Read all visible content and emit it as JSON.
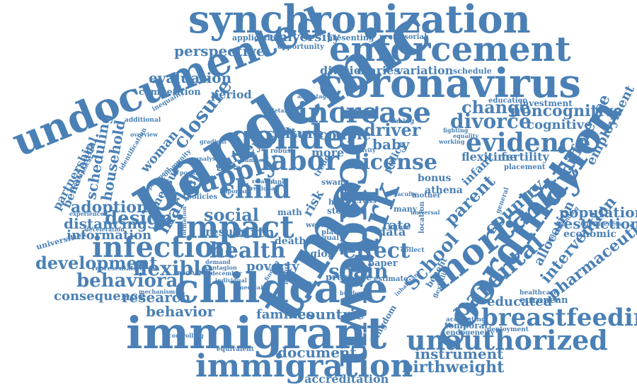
{
  "title": "",
  "color": "#4a80b5",
  "words": [
    {
      "id": "synchronization",
      "text": "synchronization",
      "weight": 0.8
    },
    {
      "id": "enforcement",
      "text": "enforcement",
      "weight": 0.8
    },
    {
      "id": "coronavirus",
      "text": "coronavirus",
      "weight": 0.8
    },
    {
      "id": "undocumented",
      "text": "undocumented",
      "weight": 0.9
    },
    {
      "id": "pandemic",
      "text": "pandemic",
      "weight": 1.0
    },
    {
      "id": "gender",
      "text": "gender",
      "weight": 0.75
    },
    {
      "id": "increase",
      "text": "increase",
      "weight": 0.6
    },
    {
      "id": "labor",
      "text": "labor",
      "weight": 0.6
    },
    {
      "id": "supply",
      "text": "supply",
      "weight": 0.55
    },
    {
      "id": "child",
      "text": "child",
      "weight": 0.55
    },
    {
      "id": "impact",
      "text": "impact",
      "weight": 0.7
    },
    {
      "id": "infection",
      "text": "infection",
      "weight": 0.65
    },
    {
      "id": "childcare",
      "text": "childcare",
      "weight": 0.9
    },
    {
      "id": "immigrant",
      "text": "immigrant",
      "weight": 0.9
    },
    {
      "id": "immigration",
      "text": "immigration",
      "weight": 0.75
    },
    {
      "id": "time",
      "text": "time",
      "weight": 1.0
    },
    {
      "id": "lockdown",
      "text": "lockdown",
      "weight": 0.95
    },
    {
      "id": "work",
      "text": "work",
      "weight": 0.75
    },
    {
      "id": "coordination",
      "text": "coordination",
      "weight": 0.9
    },
    {
      "id": "mortality",
      "text": "mortality",
      "weight": 0.75
    },
    {
      "id": "unauthorized",
      "text": "unauthorized",
      "weight": 0.6
    },
    {
      "id": "breastfeeding",
      "text": "breastfeeding",
      "weight": 0.55
    },
    {
      "id": "evidence",
      "text": "evidence",
      "weight": 0.5
    },
    {
      "id": "divorce",
      "text": "divorce",
      "weight": 0.4
    },
    {
      "id": "change",
      "text": "change",
      "weight": 0.4
    },
    {
      "id": "noncognitive",
      "text": "noncognitive",
      "weight": 0.35
    },
    {
      "id": "cognitive",
      "text": "cognitive",
      "weight": 0.3
    },
    {
      "id": "license",
      "text": "license",
      "weight": 0.45
    },
    {
      "id": "health",
      "text": "health",
      "weight": 0.45
    },
    {
      "id": "effect",
      "text": "effect",
      "weight": 0.45
    },
    {
      "id": "spain",
      "text": "spain",
      "weight": 0.4
    },
    {
      "id": "school",
      "text": "School",
      "weight": 0.4
    },
    {
      "id": "parental",
      "text": "parental",
      "weight": 0.5
    },
    {
      "id": "parent",
      "text": "parent",
      "weight": 0.4
    },
    {
      "id": "country",
      "text": "country",
      "weight": 0.35
    },
    {
      "id": "difference",
      "text": "difference",
      "weight": 0.3
    },
    {
      "id": "employment",
      "text": "employment",
      "weight": 0.25
    },
    {
      "id": "population",
      "text": "population",
      "weight": 0.3
    },
    {
      "id": "restriction",
      "text": "restriction",
      "weight": 0.3
    },
    {
      "id": "economic",
      "text": "economic",
      "weight": 0.2
    },
    {
      "id": "pharmaceutical",
      "text": "pharmaceutical",
      "weight": 0.35
    },
    {
      "id": "intervention",
      "text": "intervention",
      "weight": 0.35
    },
    {
      "id": "allocation",
      "text": "allocation",
      "weight": 0.3
    },
    {
      "id": "educated",
      "text": "educated",
      "weight": 0.3
    },
    {
      "id": "european",
      "text": "european",
      "weight": 0.2
    },
    {
      "id": "birthweight",
      "text": "birthweight",
      "weight": 0.35
    },
    {
      "id": "instrument",
      "text": "instrument",
      "weight": 0.3
    },
    {
      "id": "document",
      "text": "document",
      "weight": 0.3
    },
    {
      "id": "countrie",
      "text": "countrie",
      "weight": 0.3
    },
    {
      "id": "families",
      "text": "families",
      "weight": 0.25
    },
    {
      "id": "accreditation",
      "text": "accreditation",
      "weight": 0.25
    },
    {
      "id": "behavior",
      "text": "behavior",
      "weight": 0.3
    },
    {
      "id": "research",
      "text": "research",
      "weight": 0.3
    },
    {
      "id": "behavioral",
      "text": "behavioral",
      "weight": 0.4
    },
    {
      "id": "consequence",
      "text": "consequence",
      "weight": 0.25
    },
    {
      "id": "development",
      "text": "development",
      "weight": 0.35
    },
    {
      "id": "flexible",
      "text": "flexible",
      "weight": 0.45
    },
    {
      "id": "distancing",
      "text": "distancing",
      "weight": 0.3
    },
    {
      "id": "information",
      "text": "information",
      "weight": 0.25
    },
    {
      "id": "design",
      "text": "design",
      "weight": 0.4
    },
    {
      "id": "adoption",
      "text": "adoption",
      "weight": 0.35
    },
    {
      "id": "market",
      "text": "market",
      "weight": 0.35
    },
    {
      "id": "social",
      "text": "social",
      "weight": 0.35
    },
    {
      "id": "birth",
      "text": "birth",
      "weight": 0.3
    },
    {
      "id": "result",
      "text": "result",
      "weight": 0.25
    },
    {
      "id": "culture",
      "text": "culture",
      "weight": 0.3
    },
    {
      "id": "couple",
      "text": "couple",
      "weight": 0.3
    },
    {
      "id": "driver",
      "text": "driver",
      "weight": 0.3
    },
    {
      "id": "baby",
      "text": "baby",
      "weight": 0.3
    },
    {
      "id": "more",
      "text": "more",
      "weight": 0.25
    },
    {
      "id": "data",
      "text": "data",
      "weight": 0.25
    },
    {
      "id": "rate",
      "text": "rate",
      "weight": 0.25
    },
    {
      "id": "closure",
      "text": "closure",
      "weight": 0.4
    },
    {
      "id": "survey",
      "text": "survey",
      "weight": 0.3
    },
    {
      "id": "household",
      "text": "household",
      "weight": 0.3
    },
    {
      "id": "scheduling",
      "text": "scheduling",
      "weight": 0.3
    },
    {
      "id": "partnership",
      "text": "partnership",
      "weight": 0.25
    },
    {
      "id": "behavioural",
      "text": "behavioural",
      "weight": 0.25
    },
    {
      "id": "woman",
      "text": "woman",
      "weight": 0.3
    },
    {
      "id": "perspective",
      "text": "perspective",
      "weight": 0.35
    },
    {
      "id": "evaluation",
      "text": "evaluation",
      "weight": 0.35
    },
    {
      "id": "competition",
      "text": "competition",
      "weight": 0.2
    },
    {
      "id": "period",
      "text": "period",
      "weight": 0.25
    },
    {
      "id": "university",
      "text": "university",
      "weight": 0.3
    },
    {
      "id": "division",
      "text": "division",
      "weight": 0.3
    },
    {
      "id": "diaries",
      "text": "diaries",
      "weight": 0.3
    },
    {
      "id": "variation",
      "text": "variation",
      "weight": 0.3
    },
    {
      "id": "schedule",
      "text": "schedule",
      "weight": 0.15
    },
    {
      "id": "application",
      "text": "application",
      "weight": 0.15
    },
    {
      "id": "presenting",
      "text": "presenting",
      "weight": 0.15
    },
    {
      "id": "professorial",
      "text": "professorial",
      "weight": 0.12
    },
    {
      "id": "opportunity",
      "text": "opportunity",
      "weight": 0.12
    },
    {
      "id": "investment",
      "text": "investment",
      "weight": 0.15
    },
    {
      "id": "education",
      "text": "education",
      "weight": 0.12
    },
    {
      "id": "flexitime",
      "text": "flexitime",
      "weight": 0.2
    },
    {
      "id": "fertility",
      "text": "fertility",
      "weight": 0.2
    },
    {
      "id": "infant",
      "text": "infant",
      "weight": 0.2
    },
    {
      "id": "placement",
      "text": "placement",
      "weight": 0.12
    },
    {
      "id": "bonus",
      "text": "bonus",
      "weight": 0.2
    },
    {
      "id": "athena",
      "text": "athena",
      "weight": 0.2
    },
    {
      "id": "health-care",
      "text": "healthcare",
      "weight": 0.12
    },
    {
      "id": "temporal",
      "text": "temporal",
      "weight": 0.2
    },
    {
      "id": "endogeneity",
      "text": "endogeneity",
      "weight": 0.12
    },
    {
      "id": "deployment",
      "text": "deployment",
      "weight": 0.12
    },
    {
      "id": "accounting",
      "text": "accounting",
      "weight": 0.12
    },
    {
      "id": "kingdom",
      "text": "kingdom",
      "weight": 0.15
    },
    {
      "id": "poverty",
      "text": "poverty",
      "weight": 0.25
    },
    {
      "id": "death",
      "text": "death",
      "weight": 0.2
    },
    {
      "id": "region",
      "text": "region",
      "weight": 0.2
    },
    {
      "id": "presence",
      "text": "presence",
      "weight": 0.2
    },
    {
      "id": "estimate",
      "text": "estimate",
      "weight": 0.15
    },
    {
      "id": "paper",
      "text": "paper",
      "weight": 0.2
    },
    {
      "id": "risk",
      "text": "risk",
      "weight": 0.25
    },
    {
      "id": "step",
      "text": "step",
      "weight": 0.15
    },
    {
      "id": "week",
      "text": "week",
      "weight": 0.15
    },
    {
      "id": "place",
      "text": "place",
      "weight": 0.15
    },
    {
      "id": "math",
      "text": "math",
      "weight": 0.15
    },
    {
      "id": "mother",
      "text": "mother",
      "weight": 0.15
    },
    {
      "id": "many",
      "text": "many",
      "weight": 0.15
    },
    {
      "id": "future",
      "text": "future",
      "weight": 0.12
    },
    {
      "id": "collect",
      "text": "collect",
      "weight": 0.12
    },
    {
      "id": "measure",
      "text": "measure",
      "weight": 0.25
    },
    {
      "id": "policy",
      "text": "policy",
      "weight": 0.2
    },
    {
      "id": "policies",
      "text": "policies",
      "weight": 0.15
    },
    {
      "id": "swan",
      "text": "swan",
      "weight": 0.15
    },
    {
      "id": "born",
      "text": "born",
      "weight": 0.15
    },
    {
      "id": "hour",
      "text": "hour",
      "weight": 0.15
    },
    {
      "id": "young",
      "text": "young",
      "weight": 0.12
    },
    {
      "id": "robust",
      "text": "robust",
      "weight": 0.12
    },
    {
      "id": "timing",
      "text": "timing",
      "weight": 0.12
    },
    {
      "id": "activity",
      "text": "activity",
      "weight": 0.12
    },
    {
      "id": "representative",
      "text": "representative",
      "weight": 0.12
    },
    {
      "id": "demand",
      "text": "demand",
      "weight": 0.1
    },
    {
      "id": "december",
      "text": "december",
      "weight": 0.1
    },
    {
      "id": "individual",
      "text": "individual",
      "weight": 0.1
    },
    {
      "id": "neonatal",
      "text": "neonatal",
      "weight": 0.12
    },
    {
      "id": "mechanism",
      "text": "mechanism",
      "weight": 0.1
    },
    {
      "id": "controlling",
      "text": "controlling",
      "weight": 0.1
    },
    {
      "id": "equivalent",
      "text": "equivalent",
      "weight": 0.12
    },
    {
      "id": "experienced",
      "text": "experienced",
      "weight": 0.1
    },
    {
      "id": "deceleration",
      "text": "deceleration",
      "weight": 0.1
    },
    {
      "id": "universities",
      "text": "universities",
      "weight": 0.15
    },
    {
      "id": "geographical",
      "text": "geographical",
      "weight": 0.1
    },
    {
      "id": "identification",
      "text": "identification",
      "weight": 0.12
    },
    {
      "id": "additional",
      "text": "additional",
      "weight": 0.12
    },
    {
      "id": "inequality",
      "text": "inequality",
      "weight": 0.12
    },
    {
      "id": "overview",
      "text": "overview",
      "weight": 0.1
    },
    {
      "id": "fighting",
      "text": "fighting",
      "weight": 0.1
    },
    {
      "id": "equality",
      "text": "equality",
      "weight": 0.1
    },
    {
      "id": "working",
      "text": "working",
      "weight": 0.1
    },
    {
      "id": "community",
      "text": "community",
      "weight": 0.12
    },
    {
      "id": "experiment",
      "text": "experiment",
      "weight": 0.1
    },
    {
      "id": "analysis",
      "text": "analysis",
      "weight": 0.1
    },
    {
      "id": "pattern",
      "text": "pattern",
      "weight": 0.1
    },
    {
      "id": "positive",
      "text": "positive",
      "weight": 0.1
    },
    {
      "id": "gradient",
      "text": "gradient",
      "weight": 0.1
    },
    {
      "id": "number",
      "text": "number",
      "weight": 0.1
    },
    {
      "id": "related",
      "text": "related",
      "weight": 0.1
    },
    {
      "id": "important",
      "text": "important",
      "weight": 0.1
    },
    {
      "id": "regional",
      "text": "regional",
      "weight": 0.1
    },
    {
      "id": "cross",
      "text": "cross",
      "weight": 0.12
    },
    {
      "id": "level",
      "text": "level",
      "weight": 0.12
    },
    {
      "id": "average",
      "text": "average",
      "weight": 0.12
    },
    {
      "id": "equal",
      "text": "equal",
      "weight": 0.12
    },
    {
      "id": "universal",
      "text": "universal",
      "weight": 0.1
    },
    {
      "id": "faculty",
      "text": "faculty",
      "weight": 0.1
    },
    {
      "id": "location",
      "text": "location",
      "weight": 0.12
    },
    {
      "id": "benefit",
      "text": "benefit",
      "weight": 0.15
    },
    {
      "id": "flexibility",
      "text": "flexibility",
      "weight": 0.1
    },
    {
      "id": "effectiveness",
      "text": "effectiveness",
      "weight": 0.1
    },
    {
      "id": "understanding",
      "text": "understanding",
      "weight": 0.1
    },
    {
      "id": "general",
      "text": "general",
      "weight": 0.1
    },
    {
      "id": "inhabitant",
      "text": "inhabitant",
      "weight": 0.1
    },
    {
      "id": "burden",
      "text": "burden",
      "weight": 0.1
    },
    {
      "id": "finding",
      "text": "finding",
      "weight": 0.1
    },
    {
      "id": "medical",
      "text": "medical",
      "weight": 0.1
    },
    {
      "id": "contagion",
      "text": "contagion",
      "weight": 0.1
    },
    {
      "id": "leisure",
      "text": "leisure",
      "weight": 0.1
    },
    {
      "id": "formation",
      "text": "formation",
      "weight": 0.1
    },
    {
      "id": "advantage",
      "text": "advantage",
      "weight": 0.1
    },
    {
      "id": "detailed",
      "text": "detailed",
      "weight": 0.1
    },
    {
      "id": "shift",
      "text": "shift",
      "weight": 0.1
    },
    {
      "id": "trend",
      "text": "trend",
      "weight": 0.12
    }
  ]
}
